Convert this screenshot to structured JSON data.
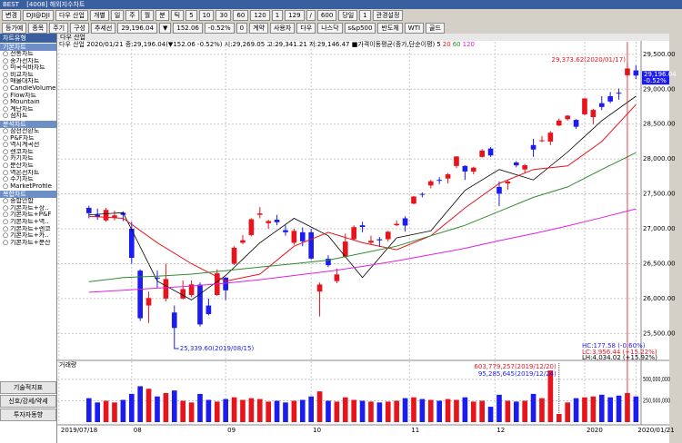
{
  "window": {
    "title": "[4008] 해외지수차트",
    "brand": "BEST"
  },
  "toolbar": {
    "row1": [
      "변경",
      "DJI@DJI",
      "다우 산업",
      "개별",
      "일",
      "주",
      "월",
      "분",
      "틱",
      "5",
      "10",
      "30",
      "60",
      "120",
      "1",
      "129",
      "/",
      "600",
      "당일",
      "1",
      "관경설정"
    ],
    "row2": [
      "등가예",
      "종목",
      "주기",
      "구성",
      "추세선",
      "29,196.04",
      "▼",
      "152.06",
      "-0.52%",
      "0",
      "계약",
      "사용자",
      "다우",
      "나스닥",
      "s&p500",
      "반도체",
      "WTI",
      "골드"
    ]
  },
  "sidebar": {
    "header": "차트유형",
    "sections": [
      {
        "title": "기본차트",
        "items": [
          "전통차트",
          "종가선차트",
          "미국식바차트",
          "비교차트",
          "매물대차트",
          "CandleVolume",
          "Flow차트",
          "Mountain",
          "계단차트",
          "점차트"
        ]
      },
      {
        "title": "분석차트",
        "items": [
          "삼선전환도",
          "P&F차트",
          "역시계곡선",
          "렌코차트",
          "카기차트",
          "분산차트",
          "역온선차트",
          "주기차트",
          "MarketProfile"
        ]
      },
      {
        "title": "복합차트",
        "items": [
          "종합안합",
          "기본차트+상..",
          "기본차트+P&F",
          "기본차트+역..",
          "기본차트+렌코",
          "기본차트+카..",
          "기본차트+분산"
        ]
      }
    ],
    "buttons": [
      "기술적지표",
      "신호/강세/약세",
      "투자자동향"
    ]
  },
  "chart_data": {
    "type": "candlestick",
    "name": "다우 산업",
    "legend": "다우 산업 2020/01/21 종:29,196.04(▼152.06 -0.52%) 시:29,269.05 고:29,341.21 저:29,146.47 ■가격이동평균(종가,단순이평)",
    "up_color": "#e8141c",
    "down_color": "#1c1cf0",
    "grid": true,
    "xlim": [
      -3.7,
      64.6
    ],
    "x_labels": [
      {
        "value": -3.5,
        "label": "2019/07/18"
      },
      {
        "value": 5,
        "label": "08"
      },
      {
        "value": 16,
        "label": "09"
      },
      {
        "value": 26,
        "label": "10"
      },
      {
        "value": 37.5,
        "label": "11"
      },
      {
        "value": 47.5,
        "label": "12"
      },
      {
        "value": 58,
        "label": "2020"
      },
      {
        "value": 64,
        "label": "2020/01/21"
      }
    ],
    "ylim": [
      25140,
      29680
    ],
    "yticks": [
      {
        "value": 25500,
        "label": "25,500.00"
      },
      {
        "value": 26000,
        "label": "26,000.00"
      },
      {
        "value": 26500,
        "label": "26,500.00"
      },
      {
        "value": 27000,
        "label": "27,000.00"
      },
      {
        "value": 27500,
        "label": "27,500.00"
      },
      {
        "value": 28000,
        "label": "28,000.00"
      },
      {
        "value": 28500,
        "label": "28,500.00"
      },
      {
        "value": 29000,
        "label": "29,000.00"
      },
      {
        "value": 29500,
        "label": "29,500.00"
      }
    ],
    "open": [
      27300,
      27200,
      27120,
      27160,
      27230,
      27000,
      26400,
      25900,
      26300,
      26000,
      25800,
      26000,
      26050,
      26200,
      25900,
      26050,
      26300,
      26500,
      26800,
      26910,
      27200,
      27080,
      27130,
      26980,
      26800,
      26950,
      26950,
      26100,
      26570,
      26250,
      26600,
      26850,
      27050,
      26800,
      26850,
      26850,
      27050,
      27150,
      27360,
      27500,
      27620,
      27700,
      27720,
      27900,
      27900,
      27820,
      28030,
      28150,
      27600,
      27650,
      27950,
      27850,
      28200,
      28260,
      28250,
      28480,
      28570,
      28560,
      28640,
      28600,
      28800,
      28900,
      28950,
      29200,
      29269.05
    ],
    "high": [
      27330,
      27290,
      27300,
      27260,
      27250,
      27100,
      26420,
      26100,
      26400,
      26500,
      25900,
      26260,
      26260,
      26230,
      26000,
      26420,
      26310,
      26750,
      26910,
      27150,
      27310,
      27130,
      27200,
      27050,
      27000,
      27020,
      27000,
      26230,
      26620,
      26430,
      26930,
      27050,
      27100,
      26900,
      26880,
      26970,
      27120,
      27180,
      27470,
      27520,
      27700,
      27740,
      27800,
      28040,
      27910,
      27890,
      28140,
      28170,
      27680,
      27700,
      27970,
      27930,
      28290,
      28330,
      28400,
      28580,
      28630,
      28570,
      28870,
      28720,
      28900,
      28960,
      29010,
      29373.62,
      29341.21
    ],
    "low": [
      27150,
      27130,
      27100,
      27120,
      27110,
      26500,
      25680,
      25650,
      26150,
      25960,
      25339.6,
      25990,
      26020,
      25600,
      25760,
      26040,
      25980,
      26480,
      26780,
      26890,
      27150,
      27000,
      27050,
      26900,
      26770,
      26750,
      26560,
      25743,
      26450,
      26220,
      26590,
      26840,
      26950,
      26780,
      26740,
      26820,
      27040,
      26960,
      27350,
      27450,
      27580,
      27640,
      27650,
      27870,
      27700,
      27780,
      28020,
      28030,
      27325,
      27560,
      27880,
      27800,
      28030,
      28240,
      28200,
      28470,
      28550,
      28430,
      28630,
      28500,
      28700,
      28800,
      28850,
      29180,
      29146.47
    ],
    "close": [
      27223,
      27172,
      27270,
      27192,
      27199,
      26583,
      25718,
      26008,
      26287,
      26280,
      25579,
      26136,
      26203,
      25629,
      25778,
      26362,
      26118,
      26728,
      26835,
      27137,
      27220,
      27111,
      27094,
      26950,
      26970,
      26820,
      26573,
      26201,
      26478,
      26346,
      26817,
      27024,
      27026,
      26828,
      26834,
      26958,
      27071,
      27046,
      27462,
      27492,
      27681,
      27691,
      27782,
      28036,
      27821,
      27876,
      28121,
      28051,
      27503,
      27677,
      27909,
      27911,
      28135,
      28268,
      28377,
      28551,
      28621,
      28462,
      28868,
      28703,
      28745,
      28824,
      28940,
      29297,
      29196.04
    ],
    "volume": [
      280000000,
      230000000,
      250000000,
      230000000,
      260000000,
      330000000,
      420000000,
      390000000,
      300000000,
      340000000,
      370000000,
      250000000,
      230000000,
      330000000,
      260000000,
      240000000,
      270000000,
      290000000,
      260000000,
      280000000,
      270000000,
      240000000,
      250000000,
      230000000,
      250000000,
      260000000,
      300000000,
      360000000,
      250000000,
      240000000,
      290000000,
      260000000,
      250000000,
      240000000,
      230000000,
      240000000,
      250000000,
      280000000,
      290000000,
      270000000,
      260000000,
      250000000,
      270000000,
      260000000,
      290000000,
      240000000,
      250000000,
      180000000,
      320000000,
      250000000,
      240000000,
      250000000,
      330000000,
      280000000,
      603779257,
      95285645,
      230000000,
      280000000,
      290000000,
      300000000,
      320000000,
      290000000,
      310000000,
      340000000,
      300000000
    ],
    "ma": {
      "index": [
        0,
        4,
        8,
        12,
        16,
        20,
        24,
        28,
        32,
        36,
        40,
        44,
        48,
        52,
        56,
        60,
        64
      ],
      "series": [
        {
          "name": "5",
          "color": "#000000",
          "values": [
            27200,
            27230,
            26250,
            25980,
            26330,
            26800,
            27150,
            26900,
            26300,
            26870,
            26970,
            27550,
            27850,
            27700,
            28100,
            28550,
            28900
          ]
        },
        {
          "name": "20",
          "color": "#e8141c",
          "values": [
            27180,
            27150,
            26800,
            26500,
            26250,
            26350,
            26750,
            26950,
            26800,
            26700,
            26900,
            27300,
            27650,
            27850,
            27900,
            28250,
            28780
          ]
        },
        {
          "name": "60",
          "color": "#2e8b2e",
          "values": [
            26240,
            26300,
            26320,
            26350,
            26400,
            26450,
            26500,
            26550,
            26650,
            26750,
            26900,
            27050,
            27250,
            27450,
            27600,
            27850,
            28090
          ]
        },
        {
          "name": "120",
          "color": "#e020e0",
          "values": [
            26090,
            26120,
            26150,
            26180,
            26220,
            26270,
            26330,
            26390,
            26460,
            26540,
            26630,
            26720,
            26830,
            26930,
            27040,
            27160,
            27285
          ]
        }
      ]
    },
    "annotations": [
      "29,373.62(2020/01/17)",
      "25,339.60(2019/08/15)",
      "HC:177.58 (-0.60%)",
      "LC:3,956.44 (+15.22%)",
      "LH:4,034.02 (+15.92%)",
      "603,779,257(2019/12/20)",
      "95,285,645(2019/12/24)"
    ],
    "price_tag": [
      "29,196.04",
      "-0.52%"
    ],
    "volume_panel": {
      "title": "거래량",
      "ylim": [
        0,
        690000000
      ],
      "yticks": [
        {
          "value": 250000000,
          "label": "250,000,000"
        },
        {
          "value": 500000000,
          "label": "500,000,000"
        }
      ]
    }
  }
}
